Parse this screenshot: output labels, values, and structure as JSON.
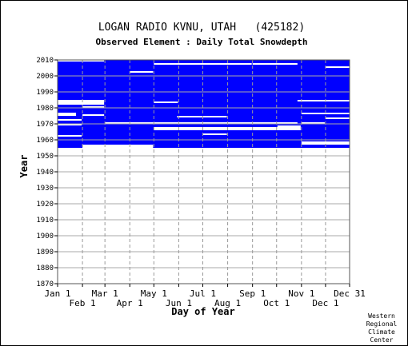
{
  "chart_data": {
    "type": "heatmap",
    "title": "LOGAN RADIO KVNU, UTAH   (425182)",
    "subtitle": "Observed Element : Daily Total Snowdepth",
    "xlabel": "Day of Year",
    "ylabel": "Year",
    "ylim": [
      1870,
      2010
    ],
    "xlim": [
      1,
      365
    ],
    "yticks": [
      "2010",
      "2000",
      "1990",
      "1980",
      "1970",
      "1960",
      "1950",
      "1940",
      "1930",
      "1920",
      "1910",
      "1900",
      "1890",
      "1880",
      "1870"
    ],
    "ytick_values": [
      2010,
      2000,
      1990,
      1980,
      1970,
      1960,
      1950,
      1940,
      1930,
      1920,
      1910,
      1900,
      1890,
      1880,
      1870
    ],
    "xticks_upper": [
      {
        "label": "Jan 1",
        "day": 1
      },
      {
        "label": "Mar 1",
        "day": 60
      },
      {
        "label": "May 1",
        "day": 121
      },
      {
        "label": "Jul 1",
        "day": 182
      },
      {
        "label": "Sep 1",
        "day": 244
      },
      {
        "label": "Nov 1",
        "day": 305
      },
      {
        "label": "Dec 31",
        "day": 365
      }
    ],
    "xticks_lower": [
      {
        "label": "Feb 1",
        "day": 32
      },
      {
        "label": "Apr 1",
        "day": 91
      },
      {
        "label": "Jun 1",
        "day": 152
      },
      {
        "label": "Aug 1",
        "day": 213
      },
      {
        "label": "Oct 1",
        "day": 274
      },
      {
        "label": "Dec 1",
        "day": 335
      }
    ],
    "data_year_range": [
      1955,
      2010
    ],
    "data_color": "#0000ff",
    "missing_color": "#ffffff",
    "grid": true,
    "missing_gaps": [
      {
        "year_from": 1982,
        "year_to": 1985,
        "day_from": 1,
        "day_to": 59
      },
      {
        "year_from": 1983,
        "year_to": 1984,
        "day_from": 121,
        "day_to": 151
      },
      {
        "year_from": 1966,
        "year_to": 1968,
        "day_from": 121,
        "day_to": 304
      },
      {
        "year_from": 1975,
        "year_to": 1977,
        "day_from": 1,
        "day_to": 24
      },
      {
        "year_from": 1969,
        "year_to": 1970,
        "day_from": 1,
        "day_to": 31
      },
      {
        "year_from": 1972,
        "year_to": 1973,
        "day_from": 1,
        "day_to": 31
      },
      {
        "year_from": 1962,
        "year_to": 1963,
        "day_from": 1,
        "day_to": 31
      },
      {
        "year_from": 1980,
        "year_to": 1981,
        "day_from": 32,
        "day_to": 59
      },
      {
        "year_from": 1975,
        "year_to": 1976,
        "day_from": 32,
        "day_to": 59
      },
      {
        "year_from": 1974,
        "year_to": 1975,
        "day_from": 150,
        "day_to": 212
      },
      {
        "year_from": 1970,
        "year_to": 1971,
        "day_from": 60,
        "day_to": 300
      },
      {
        "year_from": 1984,
        "year_to": 1985,
        "day_from": 300,
        "day_to": 365
      },
      {
        "year_from": 1976,
        "year_to": 1977,
        "day_from": 305,
        "day_to": 365
      },
      {
        "year_from": 1968,
        "year_to": 1969,
        "day_from": 275,
        "day_to": 304
      },
      {
        "year_from": 1970,
        "year_to": 1971,
        "day_from": 305,
        "day_to": 334
      },
      {
        "year_from": 1973,
        "year_to": 1974,
        "day_from": 335,
        "day_to": 365
      },
      {
        "year_from": 1963,
        "year_to": 1964,
        "day_from": 182,
        "day_to": 212
      },
      {
        "year_from": 2005,
        "year_to": 2006,
        "day_from": 335,
        "day_to": 365
      },
      {
        "year_from": 2002,
        "year_to": 2003,
        "day_from": 91,
        "day_to": 120
      },
      {
        "year_from": 2007,
        "year_to": 2008,
        "day_from": 121,
        "day_to": 243
      },
      {
        "year_from": 2007,
        "year_to": 2008,
        "day_from": 244,
        "day_to": 300
      },
      {
        "year_from": 2009,
        "year_to": 2010,
        "day_from": 1,
        "day_to": 59
      },
      {
        "year_from": 1955,
        "year_to": 1957,
        "day_from": 32,
        "day_to": 120
      },
      {
        "year_from": 1957,
        "year_to": 1959,
        "day_from": 305,
        "day_to": 365
      }
    ]
  },
  "footer": {
    "credit_line1": "Western",
    "credit_line2": "Regional",
    "credit_line3": "Climate",
    "credit_line4": "Center"
  }
}
